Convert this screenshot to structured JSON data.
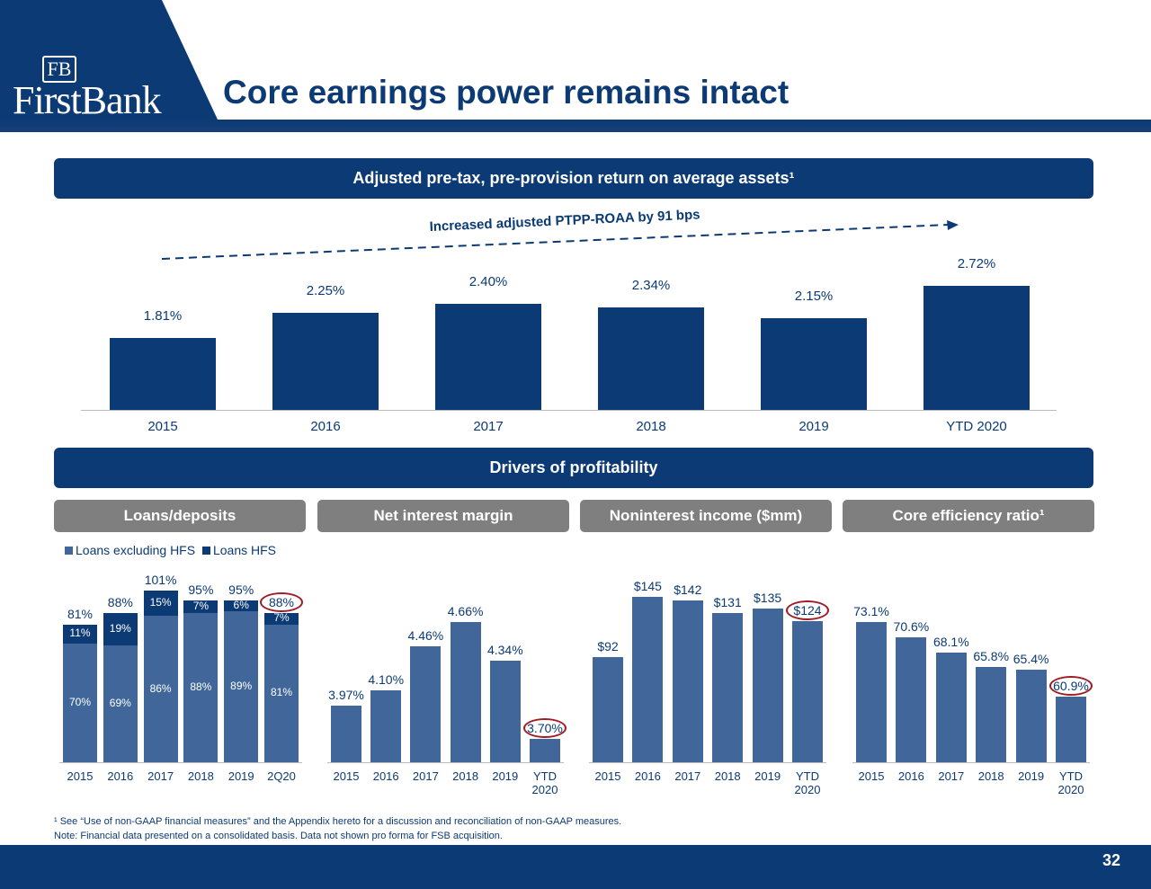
{
  "header": {
    "logo_monogram": "FB",
    "logo_text": "FirstBank",
    "title": "Core earnings power remains intact"
  },
  "colors": {
    "navy": "#0B3A75",
    "bar": "#41679A",
    "grey": "#7f7f7f",
    "highlight": "#a01c24"
  },
  "banners": {
    "top": "Adjusted pre-tax, pre-provision return on average assets¹",
    "drivers": "Drivers of profitability"
  },
  "annotation": "Increased adjusted PTPP-ROAA by 91 bps",
  "legend": [
    "Loans excluding HFS",
    "Loans HFS"
  ],
  "chart_data": [
    {
      "type": "bar",
      "title": "Adjusted pre-tax, pre-provision return on average assets¹",
      "categories": [
        "2015",
        "2016",
        "2017",
        "2018",
        "2019",
        "YTD 2020"
      ],
      "values": [
        1.81,
        2.25,
        2.4,
        2.34,
        2.15,
        2.72
      ],
      "labels": [
        "1.81%",
        "2.25%",
        "2.40%",
        "2.34%",
        "2.15%",
        "2.72%"
      ]
    },
    {
      "type": "bar",
      "stacked": true,
      "title": "Loans/deposits",
      "categories": [
        "2015",
        "2016",
        "2017",
        "2018",
        "2019",
        "2Q20"
      ],
      "series": [
        {
          "name": "Loans excluding HFS",
          "values": [
            70,
            69,
            86,
            88,
            89,
            81
          ]
        },
        {
          "name": "Loans HFS",
          "values": [
            11,
            19,
            15,
            7,
            6,
            7
          ]
        }
      ],
      "totals": [
        81,
        88,
        101,
        95,
        95,
        88
      ],
      "highlight": 5
    },
    {
      "type": "bar",
      "title": "Net interest margin",
      "categories": [
        "2015",
        "2016",
        "2017",
        "2018",
        "2019",
        "YTD\n2020"
      ],
      "values": [
        3.97,
        4.1,
        4.46,
        4.66,
        4.34,
        3.7
      ],
      "labels": [
        "3.97%",
        "4.10%",
        "4.46%",
        "4.66%",
        "4.34%",
        "3.70%"
      ],
      "highlight": 5
    },
    {
      "type": "bar",
      "title": "Noninterest income ($mm)",
      "categories": [
        "2015",
        "2016",
        "2017",
        "2018",
        "2019",
        "YTD\n2020"
      ],
      "values": [
        92,
        145,
        142,
        131,
        135,
        124
      ],
      "labels": [
        "$92",
        "$145",
        "$142",
        "$131",
        "$135",
        "$124"
      ],
      "highlight": 5
    },
    {
      "type": "bar",
      "title": "Core efficiency ratio¹",
      "categories": [
        "2015",
        "2016",
        "2017",
        "2018",
        "2019",
        "YTD\n2020"
      ],
      "values": [
        73.1,
        70.6,
        68.1,
        65.8,
        65.4,
        60.9
      ],
      "labels": [
        "73.1%",
        "70.6%",
        "68.1%",
        "65.8%",
        "65.4%",
        "60.9%"
      ],
      "highlight": 5
    }
  ],
  "footnotes": [
    "¹ See “Use of non-GAAP financial measures” and the Appendix hereto for a discussion and reconciliation of non-GAAP measures.",
    "Note:  Financial data presented on a consolidated basis. Data not shown pro forma for FSB acquisition."
  ],
  "page_number": "32"
}
